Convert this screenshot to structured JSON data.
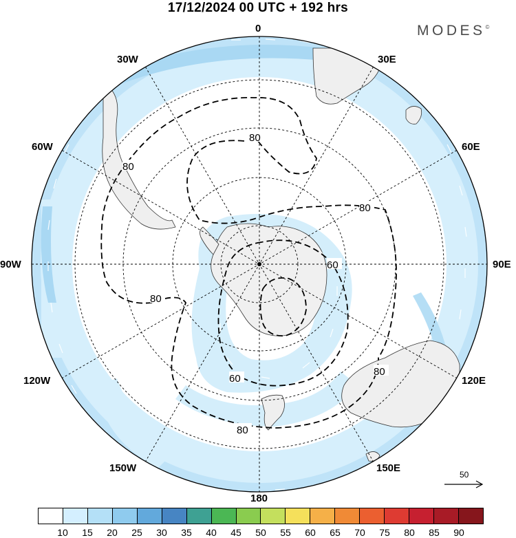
{
  "title": "17/12/2024  00 UTC  + 192 hrs",
  "brand": "MODES",
  "brand_mark": "©",
  "longitude_labels": {
    "n0": "0",
    "n30e": "30E",
    "n60e": "60E",
    "e90": "90E",
    "n120e": "120E",
    "n150e": "150E",
    "s180": "180",
    "n150w": "150W",
    "n120w": "120W",
    "w90": "90W",
    "n60w": "60W",
    "n30w": "30W"
  },
  "contour_labels": {
    "a": "80",
    "b": "80",
    "c": "80",
    "d": "80",
    "e": "80",
    "f": "60",
    "g": "60",
    "h": "80"
  },
  "reference_vector": "50",
  "colorbar": {
    "colors": [
      "#ffffff",
      "#d4efff",
      "#b4e0f7",
      "#8fcbee",
      "#62a9dc",
      "#4785c3",
      "#3ea193",
      "#4bb754",
      "#8acc4f",
      "#c4df5d",
      "#f5e05b",
      "#f5b048",
      "#f08a36",
      "#eb5f30",
      "#de3b32",
      "#c62030",
      "#a81b26",
      "#86161c"
    ],
    "labels": [
      "10",
      "15",
      "20",
      "25",
      "30",
      "35",
      "40",
      "45",
      "50",
      "55",
      "60",
      "65",
      "70",
      "75",
      "80",
      "85",
      "90"
    ]
  }
}
